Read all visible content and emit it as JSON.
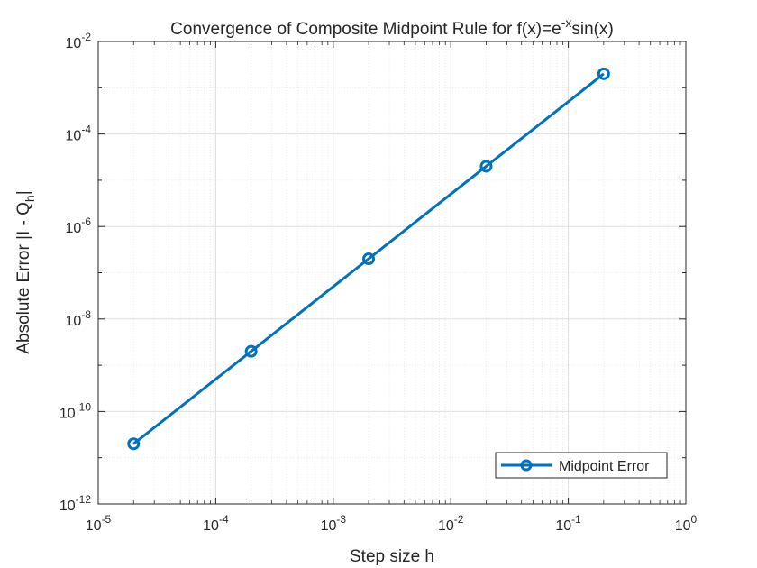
{
  "chart_data": {
    "type": "line",
    "title": "Convergence of Composite Midpoint Rule for f(x)=e^{-x}sin(x)",
    "title_parts": {
      "before": "Convergence of Composite Midpoint Rule for f(x)=e",
      "superscript": "-x",
      "after": "sin(x)"
    },
    "xlabel": "Step size h",
    "ylabel": "Absolute Error |I - Q_h|",
    "ylabel_parts": {
      "main": "Absolute Error |I - Q",
      "subscript": "h",
      "end": "|"
    },
    "x_scale": "log",
    "y_scale": "log",
    "xlim": [
      1e-05,
      1
    ],
    "ylim": [
      1e-12,
      0.01
    ],
    "x_ticks": [
      {
        "base": "10",
        "exp": "-5"
      },
      {
        "base": "10",
        "exp": "-4"
      },
      {
        "base": "10",
        "exp": "-3"
      },
      {
        "base": "10",
        "exp": "-2"
      },
      {
        "base": "10",
        "exp": "-1"
      },
      {
        "base": "10",
        "exp": "0"
      }
    ],
    "y_ticks": [
      {
        "base": "10",
        "exp": "-12"
      },
      {
        "base": "10",
        "exp": "-10"
      },
      {
        "base": "10",
        "exp": "-8"
      },
      {
        "base": "10",
        "exp": "-6"
      },
      {
        "base": "10",
        "exp": "-4"
      },
      {
        "base": "10",
        "exp": "-2"
      }
    ],
    "grid": true,
    "minor_grid": true,
    "legend_position": "bottom-right",
    "series": [
      {
        "name": "Midpoint Error",
        "color": "#0072BD",
        "marker": "circle",
        "x": [
          0.2,
          0.02,
          0.002,
          0.0002,
          2e-05
        ],
        "y": [
          0.002,
          2e-05,
          2e-07,
          2e-09,
          2e-11
        ]
      }
    ]
  }
}
